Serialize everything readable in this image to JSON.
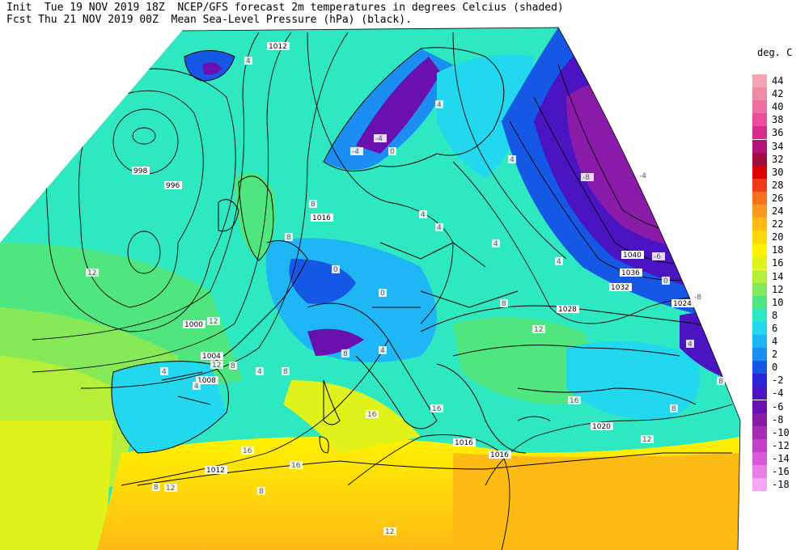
{
  "header": {
    "line1": "Init  Tue 19 NOV 2019 18Z  NCEP/GFS forecast 2m temperatures in degrees Celcius (shaded)",
    "line2": "Fcst Thu 21 NOV 2019 00Z  Mean Sea-Level Pressure (hPa) (black)."
  },
  "legend": {
    "unit": "deg. C",
    "levels": [
      {
        "label": "44",
        "color": "#f4a6b0"
      },
      {
        "label": "42",
        "color": "#f28aa6"
      },
      {
        "label": "40",
        "color": "#ee6ea2"
      },
      {
        "label": "38",
        "color": "#ea4f9c"
      },
      {
        "label": "36",
        "color": "#d92b8e"
      },
      {
        "label": "34",
        "color": "#b3127c"
      },
      {
        "label": "32",
        "color": "#a00c3c"
      },
      {
        "label": "30",
        "color": "#e00000"
      },
      {
        "label": "28",
        "color": "#f23a16"
      },
      {
        "label": "26",
        "color": "#f8721c"
      },
      {
        "label": "24",
        "color": "#fb9a1e"
      },
      {
        "label": "22",
        "color": "#fdbb14"
      },
      {
        "label": "20",
        "color": "#ffd80a"
      },
      {
        "label": "18",
        "color": "#fff200"
      },
      {
        "label": "16",
        "color": "#dff21a"
      },
      {
        "label": "14",
        "color": "#b6ef3a"
      },
      {
        "label": "12",
        "color": "#86ea58"
      },
      {
        "label": "10",
        "color": "#4fe680"
      },
      {
        "label": "8",
        "color": "#2de8c0"
      },
      {
        "label": "6",
        "color": "#22d8ee"
      },
      {
        "label": "4",
        "color": "#1eb6f4"
      },
      {
        "label": "2",
        "color": "#1a8ef2"
      },
      {
        "label": "0",
        "color": "#1658e6"
      },
      {
        "label": "-2",
        "color": "#2a26d8"
      },
      {
        "label": "-4",
        "color": "#4a14c2"
      },
      {
        "label": "-6",
        "color": "#6a10b0"
      },
      {
        "label": "-8",
        "color": "#8a1aa8"
      },
      {
        "label": "-10",
        "color": "#a82ab6"
      },
      {
        "label": "-12",
        "color": "#c440c8"
      },
      {
        "label": "-14",
        "color": "#d85ad8"
      },
      {
        "label": "-16",
        "color": "#e87ee6"
      },
      {
        "label": "-18",
        "color": "#f4a6f2"
      }
    ]
  },
  "pressure_labels": [
    "1012",
    "998",
    "996",
    "1016",
    "1000",
    "1004",
    "1008",
    "1012",
    "1016",
    "1016",
    "1020",
    "1028",
    "1024",
    "1032",
    "1036",
    "1040"
  ],
  "temp_labels": [
    "4",
    "4",
    "4",
    "0",
    "8",
    "8",
    "4",
    "-4",
    "-4",
    "0",
    "4",
    "4",
    "4",
    "8",
    "0",
    "4",
    "8",
    "8",
    "4",
    "8",
    "12",
    "12",
    "12",
    "4",
    "4",
    "16",
    "16",
    "16",
    "16",
    "12",
    "8",
    "8",
    "12",
    "-8",
    "-4",
    "-6",
    "-8",
    "0",
    "4",
    "8",
    "8",
    "12",
    "12",
    "16"
  ]
}
